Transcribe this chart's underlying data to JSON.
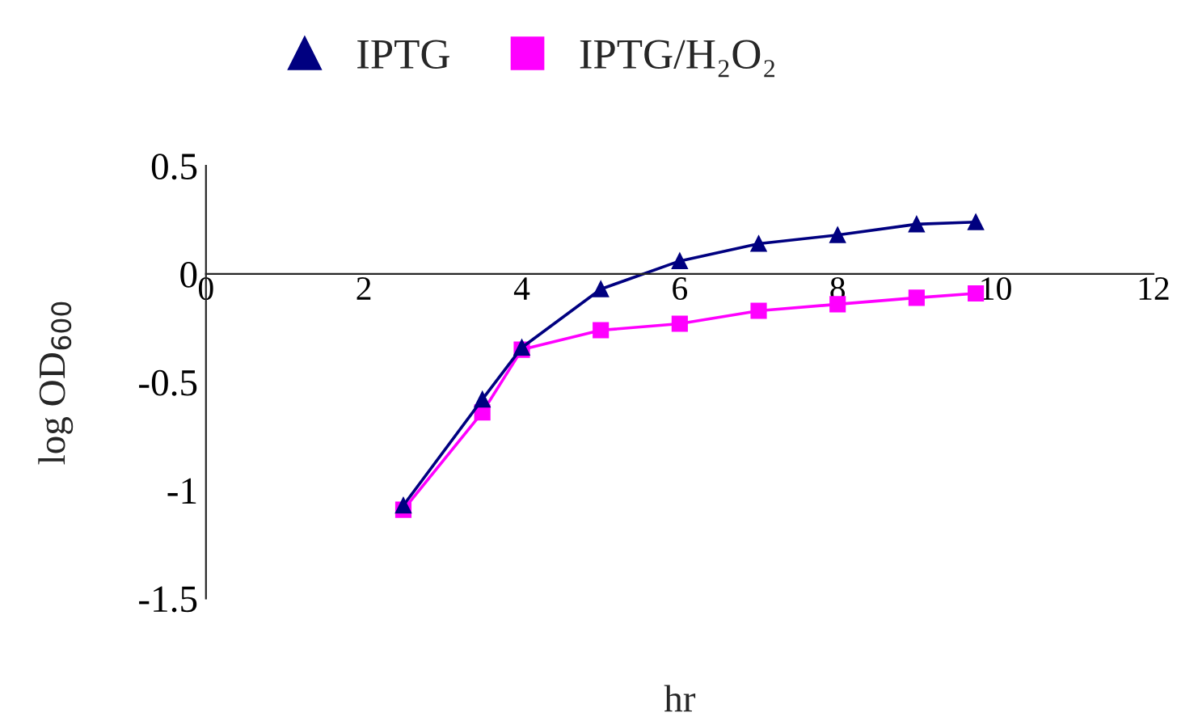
{
  "chart_data": {
    "type": "line",
    "xlabel": "hr",
    "ylabel": "log OD$_{600}$",
    "x": [
      2.5,
      3.5,
      4,
      5,
      6,
      7,
      8,
      9,
      9.75
    ],
    "series": [
      {
        "name": "IPTG",
        "color": "#000080",
        "marker": "triangle",
        "values": [
          -1.07,
          -0.58,
          -0.34,
          -0.07,
          0.06,
          0.14,
          0.18,
          0.23,
          0.24
        ]
      },
      {
        "name": "IPTG/H₂O₂",
        "color": "#ff00ff",
        "marker": "square",
        "values": [
          -1.09,
          -0.64,
          -0.35,
          -0.26,
          -0.23,
          -0.17,
          -0.14,
          -0.11,
          -0.09
        ]
      }
    ],
    "xlim": [
      0,
      12
    ],
    "xticks": [
      0,
      2,
      4,
      6,
      8,
      10,
      12
    ],
    "ylim": [
      -1.5,
      0.5
    ],
    "yticks": [
      {
        "value": -1.5,
        "label": "-1.5"
      },
      {
        "value": -1,
        "label": "-1"
      },
      {
        "value": -0.5,
        "label": "-0.5"
      },
      0,
      0.5
    ],
    "grid": false,
    "legend": "top",
    "line_style": "solid"
  }
}
